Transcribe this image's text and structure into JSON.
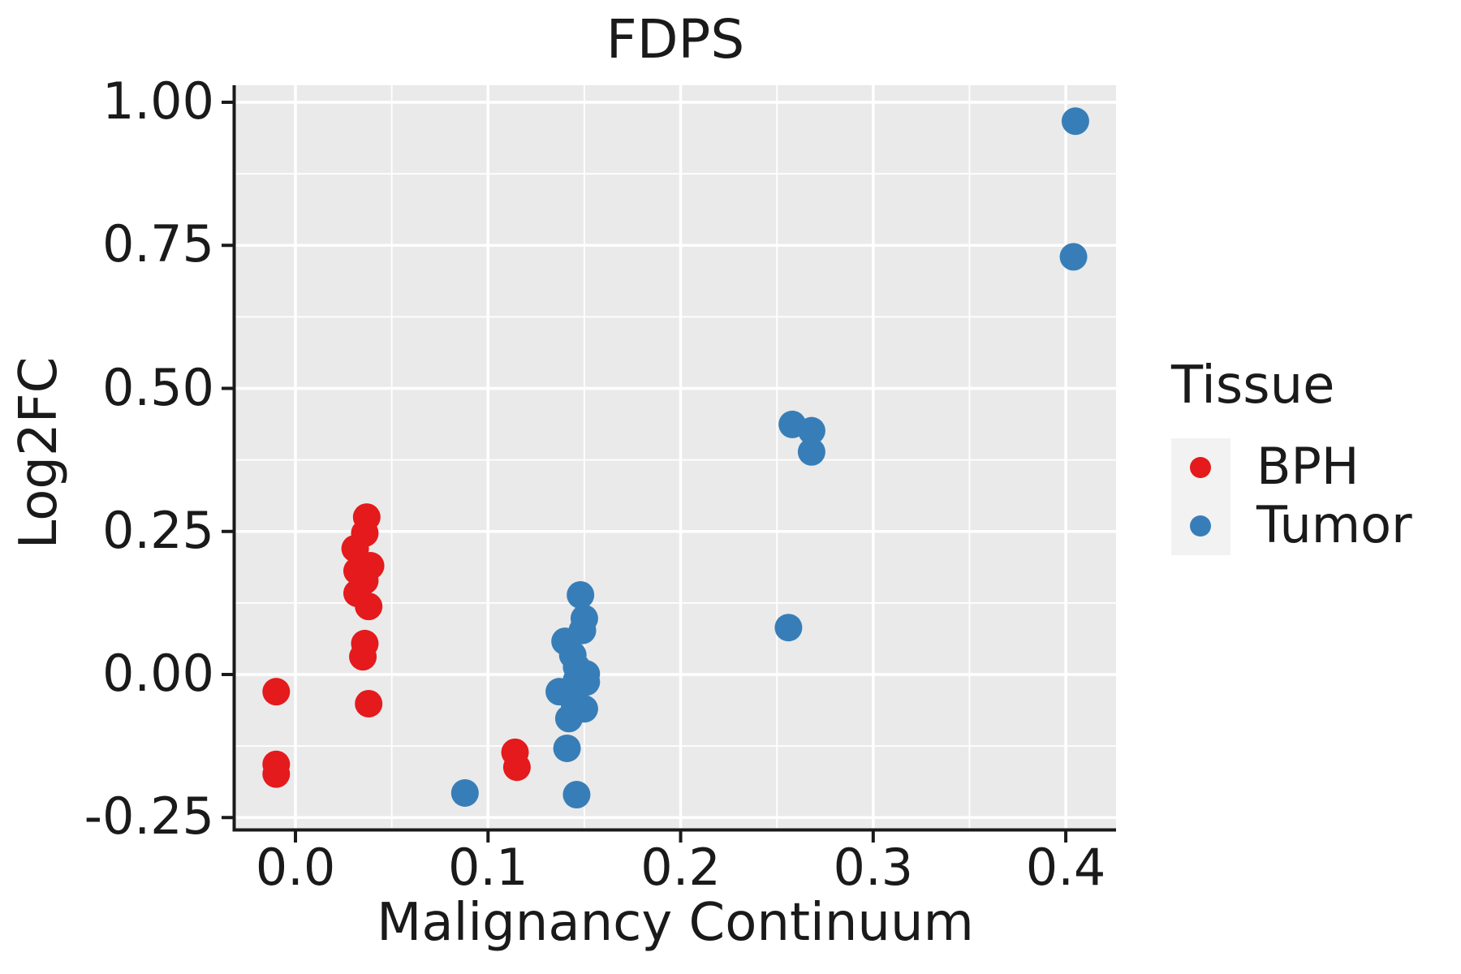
{
  "title": "FDPS",
  "axes": {
    "x_label": "Malignancy Continuum",
    "y_label": "Log2FC"
  },
  "legend": {
    "title": "Tissue",
    "items": [
      {
        "label": "BPH",
        "color": "#E41A1C"
      },
      {
        "label": "Tumor",
        "color": "#377EB8"
      }
    ]
  },
  "colors": {
    "panel_background": "#EAEAEA",
    "grid": "#FFFFFF",
    "axis": "#1a1a1a",
    "legend_key": "#F2F2F2",
    "bph": "#E41A1C",
    "tumor": "#377EB8"
  },
  "chart_data": {
    "type": "scatter",
    "title": "FDPS",
    "xlabel": "Malignancy Continuum",
    "ylabel": "Log2FC",
    "xlim": [
      -0.0312,
      0.4261
    ],
    "ylim": [
      -0.2695,
      1.0298
    ],
    "x_ticks": [
      0.0,
      0.1,
      0.2,
      0.3,
      0.4
    ],
    "x_tick_labels": [
      "0.0",
      "0.1",
      "0.2",
      "0.3",
      "0.4"
    ],
    "y_ticks": [
      -0.25,
      0.0,
      0.25,
      0.5,
      0.75,
      1.0
    ],
    "y_tick_labels": [
      "-0.25",
      "0.00",
      "0.25",
      "0.50",
      "0.75",
      "1.00"
    ],
    "x_minor_ticks": [
      0.05,
      0.15,
      0.25,
      0.35
    ],
    "y_minor_ticks": [
      -0.125,
      0.125,
      0.375,
      0.625,
      0.875
    ],
    "grid": true,
    "legend_position": "right",
    "legend_title": "Tissue",
    "series": [
      {
        "name": "BPH",
        "color": "#E41A1C",
        "points": [
          [
            -0.01,
            -0.03
          ],
          [
            -0.01,
            -0.157
          ],
          [
            -0.01,
            -0.174
          ],
          [
            0.037,
            0.275
          ],
          [
            0.036,
            0.247
          ],
          [
            0.031,
            0.22
          ],
          [
            0.039,
            0.19
          ],
          [
            0.032,
            0.181
          ],
          [
            0.036,
            0.164
          ],
          [
            0.032,
            0.142
          ],
          [
            0.038,
            0.119
          ],
          [
            0.036,
            0.054
          ],
          [
            0.035,
            0.031
          ],
          [
            0.038,
            -0.051
          ],
          [
            0.114,
            -0.136
          ],
          [
            0.115,
            -0.162
          ]
        ]
      },
      {
        "name": "Tumor",
        "color": "#377EB8",
        "points": [
          [
            0.088,
            -0.207
          ],
          [
            0.148,
            0.139
          ],
          [
            0.15,
            0.098
          ],
          [
            0.149,
            0.077
          ],
          [
            0.14,
            0.058
          ],
          [
            0.144,
            0.034
          ],
          [
            0.146,
            0.013
          ],
          [
            0.151,
            0.001
          ],
          [
            0.146,
            -0.01
          ],
          [
            0.151,
            -0.013
          ],
          [
            0.137,
            -0.03
          ],
          [
            0.145,
            -0.055
          ],
          [
            0.15,
            -0.06
          ],
          [
            0.142,
            -0.077
          ],
          [
            0.141,
            -0.129
          ],
          [
            0.146,
            -0.21
          ],
          [
            0.258,
            0.437
          ],
          [
            0.268,
            0.426
          ],
          [
            0.268,
            0.389
          ],
          [
            0.256,
            0.082
          ],
          [
            0.405,
            0.967
          ],
          [
            0.404,
            0.73
          ]
        ]
      }
    ]
  }
}
